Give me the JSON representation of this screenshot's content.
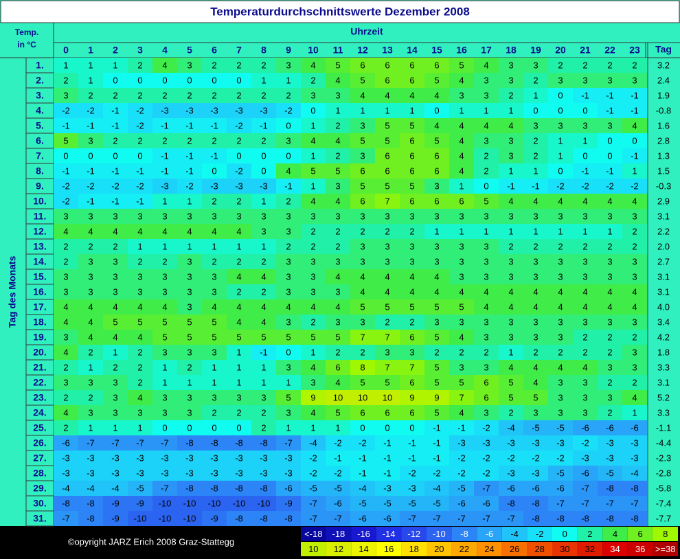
{
  "title": "Temperaturdurchschnittswerte Dezember 2008",
  "corner_label": [
    "Temp.",
    "in °C"
  ],
  "column_group_label": "Uhrzeit",
  "row_group_label": "Tag des Monats",
  "total_label": "Tag",
  "hours": [
    0,
    1,
    2,
    3,
    4,
    5,
    6,
    7,
    8,
    9,
    10,
    11,
    12,
    13,
    14,
    15,
    16,
    17,
    18,
    19,
    20,
    21,
    22,
    23
  ],
  "rows": [
    {
      "day": "1.",
      "values": [
        1,
        1,
        1,
        2,
        4,
        3,
        2,
        2,
        2,
        3,
        4,
        5,
        6,
        6,
        6,
        6,
        5,
        4,
        3,
        3,
        2,
        2,
        2,
        2
      ],
      "average": "3.2"
    },
    {
      "day": "2.",
      "values": [
        2,
        1,
        0,
        0,
        0,
        0,
        0,
        0,
        1,
        1,
        2,
        4,
        5,
        6,
        6,
        5,
        4,
        3,
        3,
        2,
        3,
        3,
        3,
        3
      ],
      "average": "2.4"
    },
    {
      "day": "3.",
      "values": [
        3,
        2,
        2,
        2,
        2,
        2,
        2,
        2,
        2,
        2,
        3,
        3,
        4,
        4,
        4,
        4,
        3,
        3,
        2,
        1,
        0,
        -1,
        -1,
        -1
      ],
      "average": "1.9"
    },
    {
      "day": "4.",
      "values": [
        -2,
        -2,
        -1,
        -2,
        -3,
        -3,
        -3,
        -3,
        -3,
        -2,
        0,
        1,
        1,
        1,
        1,
        0,
        1,
        1,
        1,
        0,
        0,
        0,
        -1,
        -1
      ],
      "average": "-0.8"
    },
    {
      "day": "5.",
      "values": [
        -1,
        -1,
        -1,
        -2,
        -1,
        -1,
        -1,
        -2,
        -1,
        0,
        1,
        2,
        3,
        5,
        5,
        4,
        4,
        4,
        4,
        3,
        3,
        3,
        3,
        4
      ],
      "average": "1.6"
    },
    {
      "day": "6.",
      "values": [
        5,
        3,
        2,
        2,
        2,
        2,
        2,
        2,
        2,
        3,
        4,
        4,
        5,
        5,
        6,
        5,
        4,
        3,
        3,
        2,
        1,
        1,
        0,
        0
      ],
      "average": "2.8"
    },
    {
      "day": "7.",
      "values": [
        0,
        0,
        0,
        0,
        -1,
        -1,
        -1,
        0,
        0,
        0,
        1,
        2,
        3,
        6,
        6,
        6,
        4,
        2,
        3,
        2,
        1,
        0,
        0,
        -1
      ],
      "average": "1.3"
    },
    {
      "day": "8.",
      "values": [
        -1,
        -1,
        -1,
        -1,
        -1,
        -1,
        0,
        -2,
        0,
        4,
        5,
        5,
        6,
        6,
        6,
        6,
        4,
        2,
        1,
        1,
        0,
        -1,
        -1,
        1
      ],
      "average": "1.5"
    },
    {
      "day": "9.",
      "values": [
        -2,
        -2,
        -2,
        -2,
        -3,
        -2,
        -3,
        -3,
        -3,
        -1,
        1,
        3,
        5,
        5,
        5,
        3,
        1,
        0,
        -1,
        -1,
        -2,
        -2,
        -2,
        -2
      ],
      "average": "-0.3"
    },
    {
      "day": "10.",
      "values": [
        -2,
        -1,
        -1,
        -1,
        1,
        1,
        2,
        2,
        1,
        2,
        4,
        4,
        6,
        7,
        6,
        6,
        6,
        5,
        4,
        4,
        4,
        4,
        4,
        4
      ],
      "average": "2.9"
    },
    {
      "day": "11.",
      "values": [
        3,
        3,
        3,
        3,
        3,
        3,
        3,
        3,
        3,
        3,
        3,
        3,
        3,
        3,
        3,
        3,
        3,
        3,
        3,
        3,
        3,
        3,
        3,
        3
      ],
      "average": "3.1"
    },
    {
      "day": "12.",
      "values": [
        4,
        4,
        4,
        4,
        4,
        4,
        4,
        4,
        3,
        3,
        2,
        2,
        2,
        2,
        2,
        1,
        1,
        1,
        1,
        1,
        1,
        1,
        1,
        2
      ],
      "average": "2.2"
    },
    {
      "day": "13.",
      "values": [
        2,
        2,
        2,
        1,
        1,
        1,
        1,
        1,
        1,
        2,
        2,
        2,
        3,
        3,
        3,
        3,
        3,
        3,
        2,
        2,
        2,
        2,
        2,
        2
      ],
      "average": "2.0"
    },
    {
      "day": "14.",
      "values": [
        2,
        3,
        3,
        2,
        2,
        3,
        2,
        2,
        2,
        3,
        3,
        3,
        3,
        3,
        3,
        3,
        3,
        3,
        3,
        3,
        3,
        3,
        3,
        3
      ],
      "average": "2.7"
    },
    {
      "day": "15.",
      "values": [
        3,
        3,
        3,
        3,
        3,
        3,
        3,
        4,
        4,
        3,
        3,
        4,
        4,
        4,
        4,
        4,
        3,
        3,
        3,
        3,
        3,
        3,
        3,
        3
      ],
      "average": "3.1"
    },
    {
      "day": "16.",
      "values": [
        3,
        3,
        3,
        3,
        3,
        3,
        3,
        2,
        2,
        3,
        3,
        3,
        4,
        4,
        4,
        4,
        4,
        4,
        4,
        4,
        4,
        4,
        4,
        4
      ],
      "average": "3.1"
    },
    {
      "day": "17.",
      "values": [
        4,
        4,
        4,
        4,
        4,
        3,
        4,
        4,
        4,
        4,
        4,
        4,
        5,
        5,
        5,
        5,
        5,
        4,
        4,
        4,
        4,
        4,
        4,
        4
      ],
      "average": "4.0"
    },
    {
      "day": "18.",
      "values": [
        4,
        4,
        5,
        5,
        5,
        5,
        5,
        4,
        4,
        3,
        2,
        3,
        3,
        2,
        2,
        3,
        3,
        3,
        3,
        3,
        3,
        3,
        3,
        3
      ],
      "average": "3.4"
    },
    {
      "day": "19.",
      "values": [
        3,
        4,
        4,
        4,
        5,
        5,
        5,
        5,
        5,
        5,
        5,
        5,
        7,
        7,
        6,
        5,
        4,
        3,
        3,
        3,
        3,
        2,
        2,
        2
      ],
      "average": "4.2"
    },
    {
      "day": "20.",
      "values": [
        4,
        2,
        1,
        2,
        3,
        3,
        3,
        1,
        -1,
        0,
        1,
        2,
        2,
        3,
        3,
        2,
        2,
        2,
        1,
        2,
        2,
        2,
        2,
        3
      ],
      "average": "1.8"
    },
    {
      "day": "21.",
      "values": [
        2,
        1,
        2,
        2,
        1,
        2,
        1,
        1,
        1,
        3,
        4,
        6,
        8,
        7,
        7,
        5,
        3,
        3,
        4,
        4,
        4,
        4,
        3,
        3
      ],
      "average": "3.3"
    },
    {
      "day": "22.",
      "values": [
        3,
        3,
        3,
        2,
        1,
        1,
        1,
        1,
        1,
        1,
        3,
        4,
        5,
        5,
        6,
        5,
        5,
        6,
        5,
        4,
        3,
        3,
        2,
        2
      ],
      "average": "3.1"
    },
    {
      "day": "23.",
      "values": [
        2,
        2,
        3,
        4,
        3,
        3,
        3,
        3,
        3,
        5,
        9,
        10,
        10,
        10,
        9,
        9,
        7,
        6,
        5,
        5,
        3,
        3,
        3,
        4
      ],
      "average": "5.2"
    },
    {
      "day": "24.",
      "values": [
        4,
        3,
        3,
        3,
        3,
        3,
        2,
        2,
        2,
        3,
        4,
        5,
        6,
        6,
        6,
        5,
        4,
        3,
        2,
        3,
        3,
        3,
        2,
        1
      ],
      "average": "3.3"
    },
    {
      "day": "25.",
      "values": [
        2,
        1,
        1,
        1,
        0,
        0,
        0,
        0,
        2,
        1,
        1,
        1,
        0,
        0,
        0,
        -1,
        -1,
        -2,
        -4,
        -5,
        -5,
        -6,
        -6,
        -6
      ],
      "average": "-1.1"
    },
    {
      "day": "26.",
      "values": [
        -6,
        -7,
        -7,
        -7,
        -7,
        -8,
        -8,
        -8,
        -8,
        -7,
        -4,
        -2,
        -2,
        -1,
        -1,
        -1,
        -3,
        -3,
        -3,
        -3,
        -3,
        -2,
        -3,
        -3
      ],
      "average": "-4.4"
    },
    {
      "day": "27.",
      "values": [
        -3,
        -3,
        -3,
        -3,
        -3,
        -3,
        -3,
        -3,
        -3,
        -3,
        -2,
        -1,
        -1,
        -1,
        -1,
        -1,
        -2,
        -2,
        -2,
        -2,
        -2,
        -3,
        -3,
        -3
      ],
      "average": "-2.3"
    },
    {
      "day": "28.",
      "values": [
        -3,
        -3,
        -3,
        -3,
        -3,
        -3,
        -3,
        -3,
        -3,
        -3,
        -2,
        -2,
        -1,
        -1,
        -2,
        -2,
        -2,
        -2,
        -3,
        -3,
        -5,
        -6,
        -5,
        -4
      ],
      "average": "-2.8"
    },
    {
      "day": "29.",
      "values": [
        -4,
        -4,
        -4,
        -5,
        -7,
        -8,
        -8,
        -8,
        -8,
        -6,
        -5,
        -5,
        -4,
        -3,
        -3,
        -4,
        -5,
        -7,
        -6,
        -6,
        -6,
        -7,
        -8,
        -8
      ],
      "average": "-5.8"
    },
    {
      "day": "30.",
      "values": [
        -8,
        -8,
        -9,
        -9,
        -10,
        -10,
        -10,
        -10,
        -10,
        -9,
        -7,
        -6,
        -5,
        -5,
        -5,
        -5,
        -6,
        -6,
        -8,
        -8,
        -7,
        -7,
        -7,
        -7
      ],
      "average": "-7.4"
    },
    {
      "day": "31.",
      "values": [
        -7,
        -8,
        -9,
        -10,
        -10,
        -10,
        -9,
        -8,
        -8,
        -8,
        -7,
        -7,
        -6,
        -6,
        -7,
        -7,
        -7,
        -7,
        -7,
        -8,
        -8,
        -8,
        -8,
        -8
      ],
      "average": "-7.7"
    }
  ],
  "footer": "©opyright JARZ Erich 2008 Graz-Stattegg",
  "legend": [
    {
      "label": "<-18",
      "color": "#0808a0"
    },
    {
      "value": -18,
      "color": "#1010b8"
    },
    {
      "value": -16,
      "color": "#1818d0"
    },
    {
      "value": -14,
      "color": "#2030e4"
    },
    {
      "value": -12,
      "color": "#2848ec"
    },
    {
      "value": -10,
      "color": "#2c64f2"
    },
    {
      "value": -8,
      "color": "#2c84f6"
    },
    {
      "value": -6,
      "color": "#28a4f8"
    },
    {
      "value": -4,
      "color": "#20c4f8"
    },
    {
      "value": -2,
      "color": "#18e0f8"
    },
    {
      "value": 0,
      "color": "#10fcf0"
    },
    {
      "value": 2,
      "color": "#20f0a8"
    },
    {
      "value": 4,
      "color": "#40ec48"
    },
    {
      "value": 6,
      "color": "#70f020"
    },
    {
      "value": 8,
      "color": "#a0f800"
    },
    {
      "value": 10,
      "color": "#c0f000"
    },
    {
      "value": 12,
      "color": "#d8f000"
    },
    {
      "value": 14,
      "color": "#ecf400"
    },
    {
      "value": 16,
      "color": "#ffff00"
    },
    {
      "value": 18,
      "color": "#ffe000"
    },
    {
      "value": 20,
      "color": "#ffc400"
    },
    {
      "value": 22,
      "color": "#ffa800"
    },
    {
      "value": 24,
      "color": "#ff9000"
    },
    {
      "value": 26,
      "color": "#f87000"
    },
    {
      "value": 28,
      "color": "#f05000"
    },
    {
      "value": 30,
      "color": "#e83400"
    },
    {
      "value": 32,
      "color": "#e01c00"
    },
    {
      "value": 34,
      "color": "#dc0000"
    },
    {
      "value": 36,
      "color": "#cc0000"
    },
    {
      "label": ">=38",
      "color": "#b00000"
    }
  ]
}
